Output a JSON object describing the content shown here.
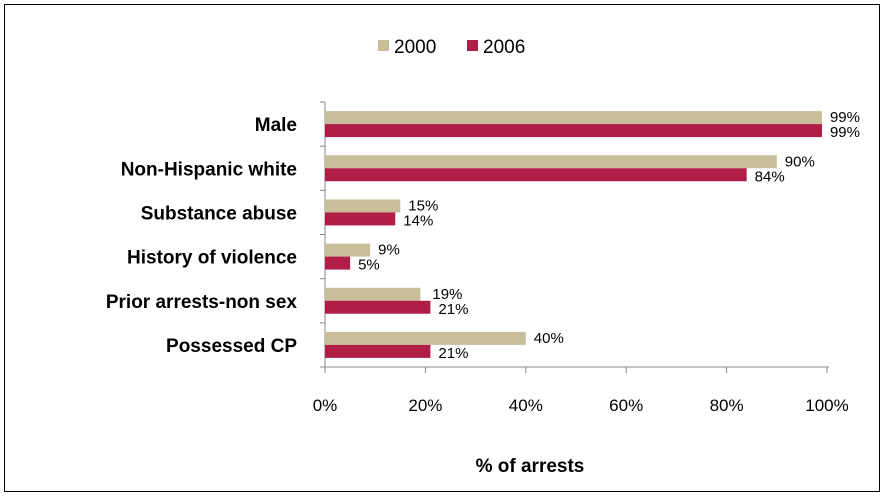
{
  "chart_data": {
    "type": "bar",
    "orientation": "horizontal",
    "categories": [
      "Male",
      "Non-Hispanic white",
      "Substance abuse",
      "History of violence",
      "Prior arrests-non sex",
      "Possessed CP"
    ],
    "series": [
      {
        "name": "2000",
        "values": [
          99,
          90,
          15,
          9,
          19,
          40
        ],
        "labels": [
          "99%",
          "90%",
          "15%",
          "9%",
          "19%",
          "40%"
        ],
        "color": "#c8bf9a"
      },
      {
        "name": "2006",
        "values": [
          99,
          84,
          14,
          5,
          21,
          21
        ],
        "labels": [
          "99%",
          "84%",
          "14%",
          "5%",
          "21%",
          "21%"
        ],
        "color": "#b01e48"
      }
    ],
    "xlabel": "% of arrests",
    "ylabel": "",
    "xlim": [
      0,
      100
    ],
    "x_ticks": [
      0,
      20,
      40,
      60,
      80,
      100
    ],
    "x_tick_labels": [
      "0%",
      "20%",
      "40%",
      "60%",
      "80%",
      "100%"
    ],
    "grid": false,
    "legend_position": "top"
  }
}
